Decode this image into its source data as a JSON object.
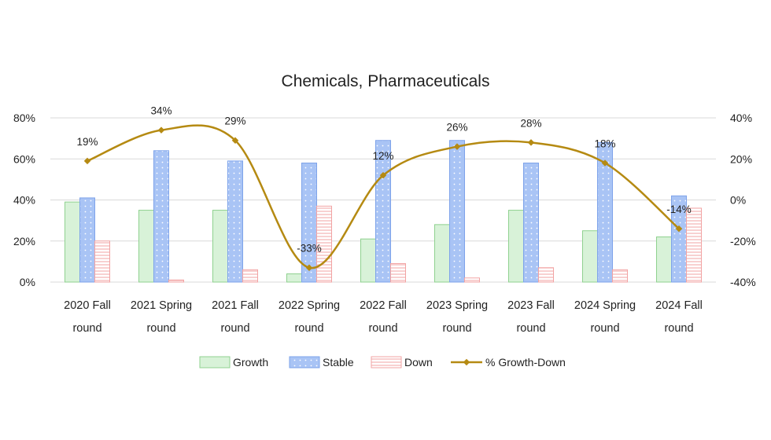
{
  "chart_data": {
    "type": "bar",
    "title": "Chemicals, Pharmaceuticals",
    "categories": [
      [
        "2020 Fall",
        "round"
      ],
      [
        "2021 Spring",
        "round"
      ],
      [
        "2021 Fall",
        "round"
      ],
      [
        "2022 Spring",
        "round"
      ],
      [
        "2022 Fall",
        "round"
      ],
      [
        "2023 Spring",
        "round"
      ],
      [
        "2023 Fall",
        "round"
      ],
      [
        "2024 Spring",
        "round"
      ],
      [
        "2024 Fall",
        "round"
      ]
    ],
    "series": [
      {
        "name": "Growth",
        "type": "bar",
        "axis": "left",
        "values": [
          39,
          35,
          35,
          4,
          21,
          28,
          35,
          25,
          22
        ]
      },
      {
        "name": "Stable",
        "type": "bar",
        "axis": "left",
        "values": [
          41,
          64,
          59,
          58,
          69,
          69,
          58,
          68,
          42
        ]
      },
      {
        "name": "Down",
        "type": "bar",
        "axis": "left",
        "values": [
          20,
          1,
          6,
          37,
          9,
          2,
          7,
          6,
          36
        ]
      },
      {
        "name": "% Growth-Down",
        "type": "line",
        "axis": "right",
        "values": [
          19,
          34,
          29,
          -33,
          12,
          26,
          28,
          18,
          -14
        ],
        "labels": [
          "19%",
          "34%",
          "29%",
          "-33%",
          "12%",
          "26%",
          "28%",
          "18%",
          "-14%"
        ]
      }
    ],
    "y_left": {
      "min": 0,
      "max": 80,
      "ticks": [
        "0%",
        "20%",
        "40%",
        "60%",
        "80%"
      ]
    },
    "y_right": {
      "min": -40,
      "max": 40,
      "ticks": [
        "-40%",
        "-20%",
        "0%",
        "20%",
        "40%"
      ]
    },
    "grid": true,
    "legend": "bottom",
    "colors": {
      "growth_fill": "#d8f2d8",
      "growth_stroke": "#8fd18f",
      "stable_fill": "#a9c4f5",
      "stable_stroke": "#7ea3ea",
      "down_fill": "#ffffff",
      "down_stroke": "#f2a3a3",
      "line": "#b58a12",
      "grid": "#d9d9d9"
    }
  }
}
